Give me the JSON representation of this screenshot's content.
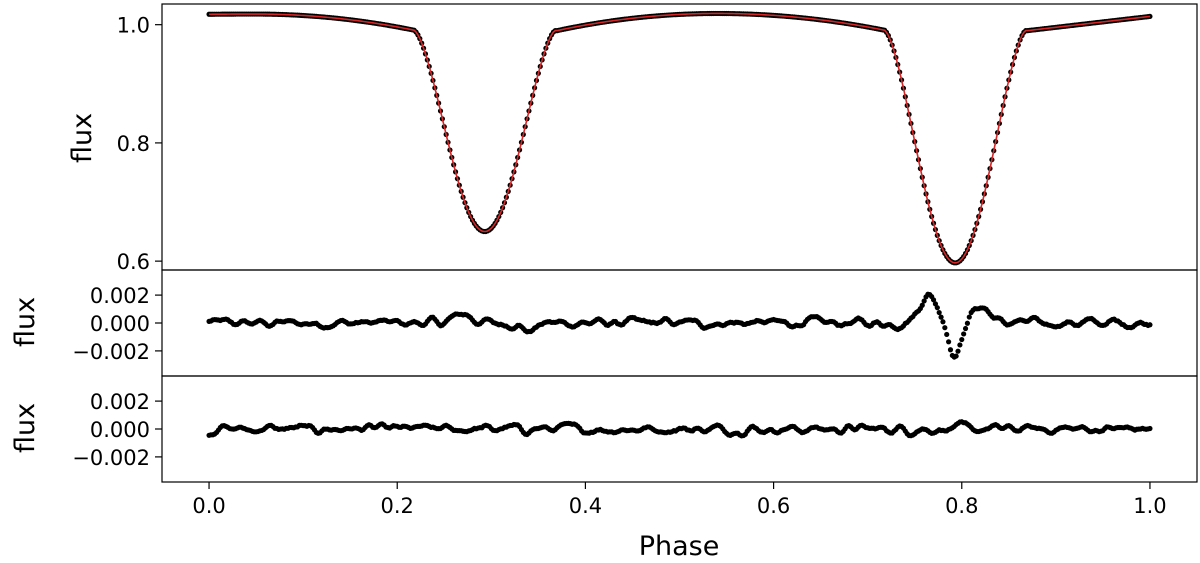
{
  "chart_data": [
    {
      "type": "scatter",
      "panel": "light-curve",
      "xlabel": "",
      "ylabel": "flux",
      "xlim": [
        -0.05,
        1.05
      ],
      "ylim": [
        0.585,
        1.035
      ],
      "yticks": [
        0.6,
        0.8,
        1.0
      ],
      "ytick_labels": [
        "0.6",
        "0.8",
        "1.0"
      ],
      "marker_color": "#000000",
      "model_color": "#d62728",
      "features": {
        "out_of_eclipse_max": [
          [
            0.05,
            1.018
          ],
          [
            0.54,
            1.019
          ]
        ],
        "primary_eclipse": {
          "center": 0.293,
          "depth_min": 0.65,
          "start": 0.22,
          "end": 0.37
        },
        "secondary_eclipse": {
          "center": 0.793,
          "depth_min": 0.597,
          "start": 0.72,
          "end": 0.87
        },
        "eclipse_edge_flux": 0.99,
        "end_values": [
          [
            0.0,
            1.014
          ],
          [
            1.0,
            1.014
          ]
        ]
      },
      "series": [
        {
          "role": "observed",
          "marker": "dot"
        },
        {
          "role": "model",
          "line": "solid"
        }
      ]
    },
    {
      "type": "scatter",
      "panel": "residuals-1",
      "xlabel": "",
      "ylabel": "flux",
      "xlim": [
        -0.05,
        1.05
      ],
      "ylim": [
        -0.0038,
        0.0038
      ],
      "yticks": [
        -0.002,
        0.0,
        0.002
      ],
      "ytick_labels": [
        "−0.002",
        "0.000",
        "0.002"
      ],
      "marker_color": "#000000",
      "features": {
        "noise_amplitude": 0.00035,
        "bump_near_0_27": 0.0007,
        "secondary_feature": [
          [
            0.765,
            0.002
          ],
          [
            0.793,
            -0.0024
          ],
          [
            0.82,
            0.0012
          ]
        ]
      }
    },
    {
      "type": "scatter",
      "panel": "residuals-2",
      "xlabel": "Phase",
      "ylabel": "flux",
      "xlim": [
        -0.05,
        1.05
      ],
      "ylim": [
        -0.0038,
        0.0038
      ],
      "yticks": [
        -0.002,
        0.0,
        0.002
      ],
      "ytick_labels": [
        "−0.002",
        "0.000",
        "0.002"
      ],
      "xticks": [
        0.0,
        0.2,
        0.4,
        0.6,
        0.8,
        1.0
      ],
      "xtick_labels": [
        "0.0",
        "0.2",
        "0.4",
        "0.6",
        "0.8",
        "1.0"
      ],
      "marker_color": "#000000",
      "features": {
        "noise_amplitude": 0.00035
      }
    }
  ]
}
